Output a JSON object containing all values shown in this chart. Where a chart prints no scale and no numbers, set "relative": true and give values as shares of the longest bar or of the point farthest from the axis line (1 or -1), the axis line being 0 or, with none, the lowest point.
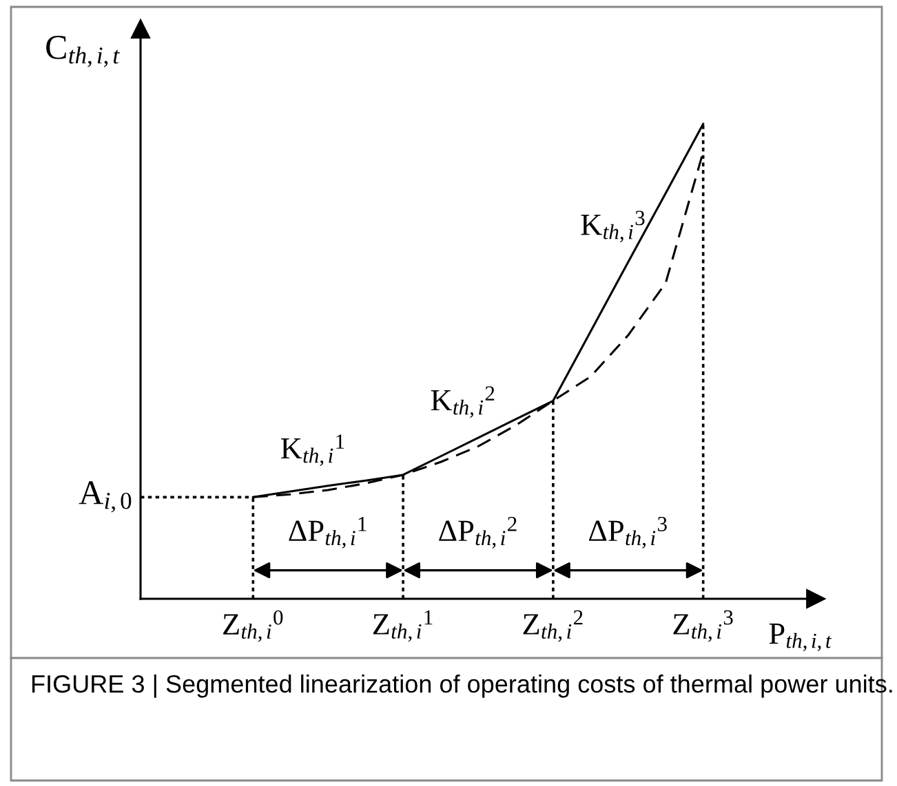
{
  "chart_data": {
    "type": "line",
    "relative": true,
    "xlabel": "P$_{th,i,t}$",
    "ylabel": "C$_{th,i,t}$",
    "categories": [
      null,
      null,
      null,
      "Z$_{th,i}$$^{0}$",
      null,
      null,
      null,
      "Z$_{th,i}$$^{1}$",
      null,
      null,
      null,
      "Z$_{th,i}$$^{2}$",
      null,
      null,
      null,
      "Z$_{th,i}$$^{3}$",
      null,
      null,
      null
    ],
    "series": [
      {
        "color": "#000000",
        "line_style": "solid",
        "values": [
          null,
          null,
          null,
          0.214,
          0.226,
          0.238,
          0.249,
          0.261,
          0.3,
          0.339,
          0.378,
          0.417,
          0.563,
          0.709,
          0.854,
          1,
          null,
          null,
          null
        ]
      },
      {
        "color": "#000000",
        "line_style": "dashed",
        "values": [
          null,
          null,
          null,
          0.214,
          0.22,
          0.229,
          0.243,
          0.261,
          0.288,
          0.321,
          0.365,
          0.417,
          0.468,
          0.555,
          0.665,
          0.941,
          null,
          null,
          null
        ]
      }
    ],
    "ref_lines": [
      {
        "axis": "y",
        "value": 0.214,
        "label": "A$_{i,0}$",
        "line_style": "dotted",
        "color": "#000000"
      },
      {
        "axis": "x",
        "value": "Z$_{th,i}$$^{0}$",
        "line_style": "dotted",
        "color": "#000000"
      },
      {
        "axis": "x",
        "value": "Z$_{th,i}$$^{1}$",
        "line_style": "dotted",
        "color": "#000000"
      },
      {
        "axis": "x",
        "value": "Z$_{th,i}$$^{2}$",
        "line_style": "dotted",
        "color": "#000000"
      },
      {
        "axis": "x",
        "value": "Z$_{th,i}$$^{3}$",
        "line_style": "dotted",
        "color": "#000000"
      }
    ],
    "annotations": [
      "K$_{th,i}$$^{1}$",
      "K$_{th,i}$$^{2}$",
      "K$_{th,i}$$^{3}$",
      "ΔP$_{th,i}$$^{1}$",
      "ΔP$_{th,i}$$^{2}$",
      "ΔP$_{th,i}$$^{3}$",
      "FIGURE 3 | Segmented linearization of operating costs of thermal power units."
    ]
  }
}
